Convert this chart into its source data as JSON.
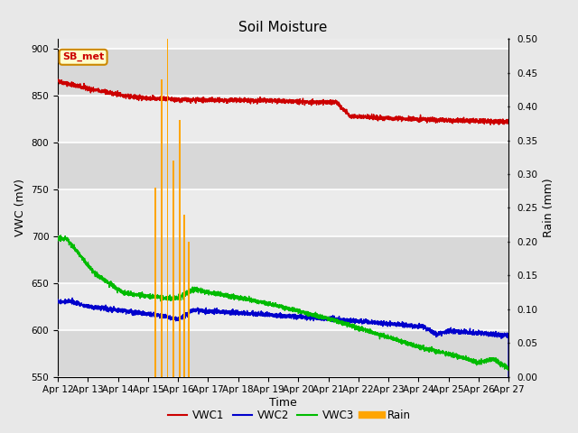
{
  "title": "Soil Moisture",
  "xlabel": "Time",
  "ylabel_left": "VWC (mV)",
  "ylabel_right": "Rain (mm)",
  "ylim_left": [
    550,
    910
  ],
  "ylim_right": [
    0.0,
    0.5
  ],
  "yticks_left": [
    550,
    600,
    650,
    700,
    750,
    800,
    850,
    900
  ],
  "yticks_right": [
    0.0,
    0.05,
    0.1,
    0.15,
    0.2,
    0.25,
    0.3,
    0.35,
    0.4,
    0.45,
    0.5
  ],
  "num_points": 3600,
  "vwc1_color": "#cc0000",
  "vwc2_color": "#0000cc",
  "vwc3_color": "#00bb00",
  "rain_color": "#ffa500",
  "fig_bg_color": "#e8e8e8",
  "band_light": "#ebebeb",
  "band_dark": "#d8d8d8",
  "annotation_label": "SB_met",
  "legend_items": [
    "VWC1",
    "VWC2",
    "VWC3",
    "Rain"
  ],
  "xtick_labels": [
    "Apr 12",
    "Apr 13",
    "Apr 14",
    "Apr 15",
    "Apr 16",
    "Apr 17",
    "Apr 18",
    "Apr 19",
    "Apr 20",
    "Apr 21",
    "Apr 22",
    "Apr 23",
    "Apr 24",
    "Apr 25",
    "Apr 26",
    "Apr 27"
  ],
  "grid_color": "#c8c8c8",
  "title_fontsize": 11,
  "tick_fontsize": 7.5
}
